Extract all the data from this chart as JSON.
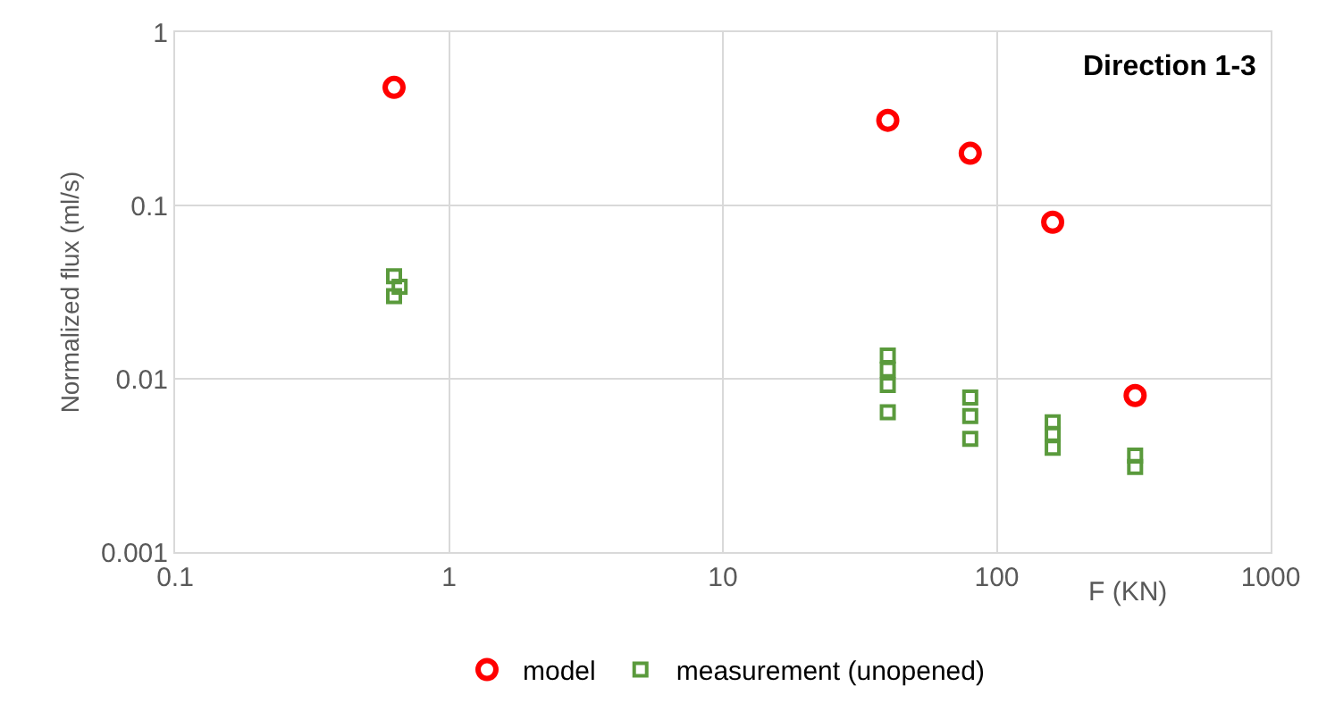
{
  "chart_data": {
    "type": "scatter",
    "title": "Direction 1-3",
    "xlabel": "F (KN)",
    "ylabel": "Normalized flux (ml/s)",
    "log": "xy",
    "grid": true,
    "legend": "bottom",
    "xlim": [
      0.1,
      1000
    ],
    "xticks": [
      0.1,
      1,
      10,
      100,
      1000
    ],
    "ylim": [
      0.001,
      1
    ],
    "yticks": [
      0.001,
      0.01,
      0.1,
      1
    ],
    "series": [
      {
        "name": "model",
        "color": "#ff0000",
        "marker": "circle",
        "x": [
          0.63,
          40,
          80,
          160,
          320
        ],
        "values": [
          0.48,
          0.31,
          0.2,
          0.08,
          0.008
        ]
      },
      {
        "name": "measurement (unopened)",
        "color": "#5a9a3c",
        "marker": "square",
        "x": [
          0.63,
          0.66,
          0.63,
          40,
          40,
          40,
          40,
          80,
          80,
          80,
          160,
          160,
          160,
          320,
          320
        ],
        "values": [
          0.039,
          0.034,
          0.03,
          0.0136,
          0.0113,
          0.0092,
          0.0064,
          0.0078,
          0.0061,
          0.0045,
          0.0056,
          0.0048,
          0.004,
          0.0036,
          0.0031
        ]
      }
    ]
  }
}
